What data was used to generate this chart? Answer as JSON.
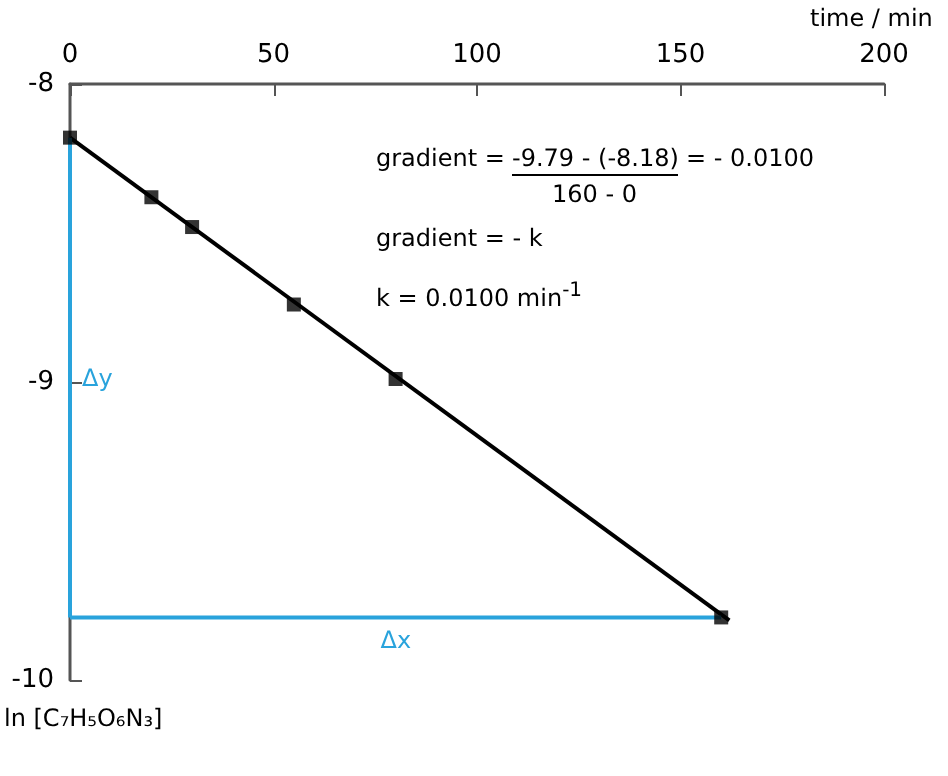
{
  "chart_data": {
    "type": "scatter",
    "xlabel": "time / min",
    "ylabel": "ln [C₇H₅O₆N₃]",
    "xlim": [
      0,
      200
    ],
    "xticks": [
      0,
      50,
      100,
      150,
      200
    ],
    "ylim": [
      -10,
      -8
    ],
    "yticks": [
      -10,
      -9,
      -8
    ],
    "grid": false,
    "legend": false,
    "marker": "square",
    "series": [
      {
        "color": "#000000",
        "x": [
          0,
          20,
          30,
          55,
          80,
          160
        ],
        "values": [
          -8.18,
          -8.38,
          -8.48,
          -8.74,
          -8.99,
          -9.79
        ]
      },
      {
        "type": "line",
        "color": "#000000",
        "marker": "none",
        "x": [
          0,
          162
        ],
        "values": [
          -8.18,
          -9.8
        ]
      },
      {
        "type": "line",
        "name": "Δy",
        "color": "#29a3dc",
        "marker": "none",
        "x": [
          0,
          0
        ],
        "values": [
          -8.18,
          -9.79
        ]
      },
      {
        "type": "line",
        "name": "Δx",
        "color": "#29a3dc",
        "marker": "none",
        "x": [
          0,
          160
        ],
        "values": [
          -9.79,
          -9.79
        ]
      }
    ],
    "annotations": [
      "gradient =",
      "-9.79 - (-8.18)",
      "160 - 0",
      "= - 0.0100",
      "gradient = - k",
      "k = 0.0100 min$^{-1}$"
    ]
  }
}
